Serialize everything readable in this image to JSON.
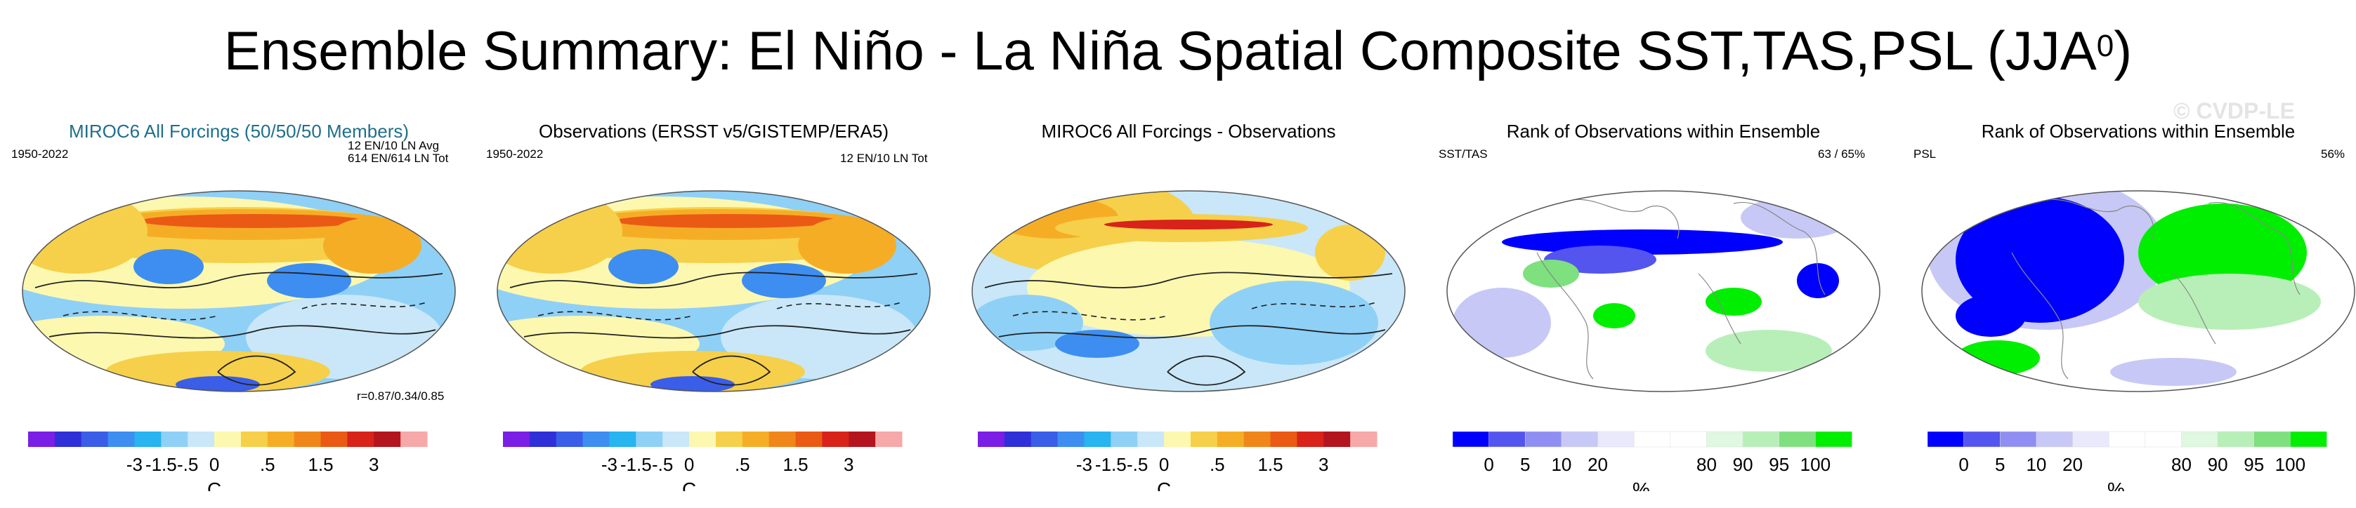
{
  "figure_title": "Ensemble Summary: El Niño - La Niña Spatial Composite SST,TAS,PSL (JJA",
  "figure_title_sup": "0",
  "figure_title_end": ")",
  "watermark": "© CVDP-LE",
  "panels": [
    {
      "title": "MIROC6 All Forcings (50/50/50 Members)",
      "left_note": "1950-2022",
      "right_note_1": "12 EN/10 LN Avg",
      "right_note_2": "614 EN/614 LN Tot",
      "corr_note": "r=0.87/0.34/0.85"
    },
    {
      "title": "Observations (ERSST v5/GISTEMP/ERA5)",
      "left_note": "1950-2022",
      "right_note_1": "12 EN/10 LN Tot"
    },
    {
      "title": "MIROC6 All Forcings - Observations"
    },
    {
      "title": "Rank of Observations within Ensemble",
      "left_note": "SST/TAS",
      "right_note_1": "63 /  65%"
    },
    {
      "title": "Rank of Observations within Ensemble",
      "left_note": "PSL",
      "right_note_1": "56%"
    }
  ],
  "colorbars": {
    "temperature": {
      "colors": [
        "#7b1ee6",
        "#3030d8",
        "#3a5ee8",
        "#3d8ef0",
        "#27b4f0",
        "#8fd0f6",
        "#c9e7f8",
        "#fdf8b0",
        "#f6d04a",
        "#f6ad26",
        "#f0861a",
        "#ea5a15",
        "#d8221a",
        "#b4141e",
        "#f7a8a8"
      ],
      "labels": [
        "-3",
        "-1.5",
        "-.5",
        "0",
        ".5",
        "1.5",
        "3"
      ],
      "unit": "C"
    },
    "percent": {
      "colors": [
        "#0000ff",
        "#5454ef",
        "#8e8ef3",
        "#c8c8f6",
        "#e9e9fb",
        "#ffffff",
        "#ffffff",
        "#e0f7e0",
        "#b8efb8",
        "#7ee07e",
        "#00ee00"
      ],
      "labels": [
        "0",
        "5",
        "10",
        "20",
        "80",
        "90",
        "95",
        "100"
      ],
      "unit": "%"
    }
  }
}
